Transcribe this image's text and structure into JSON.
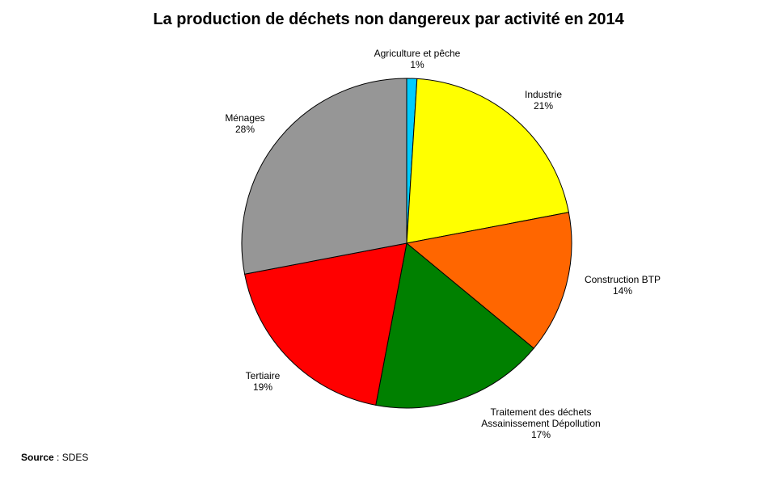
{
  "chart_data": {
    "type": "pie",
    "title": "La production de déchets non dangereux par activité en 2014",
    "start_angle": "12 o'clock",
    "direction": "clockwise",
    "slices": [
      {
        "label": [
          "Agriculture et pêche"
        ],
        "value": 1,
        "value_label": "1%",
        "color": "#00ccff"
      },
      {
        "label": [
          "Industrie"
        ],
        "value": 21,
        "value_label": "21%",
        "color": "#ffff00"
      },
      {
        "label": [
          "Construction BTP"
        ],
        "value": 14,
        "value_label": "14%",
        "color": "#ff6600"
      },
      {
        "label": [
          "Traitement des déchets",
          "Assainissement Dépollution"
        ],
        "value": 17,
        "value_label": "17%",
        "color": "#008000"
      },
      {
        "label": [
          "Tertiaire"
        ],
        "value": 19,
        "value_label": "19%",
        "color": "#ff0000"
      },
      {
        "label": [
          "Ménages"
        ],
        "value": 28,
        "value_label": "28%",
        "color": "#969696"
      }
    ]
  },
  "source": {
    "key": "Source",
    "separator": " : ",
    "value": "SDES"
  }
}
